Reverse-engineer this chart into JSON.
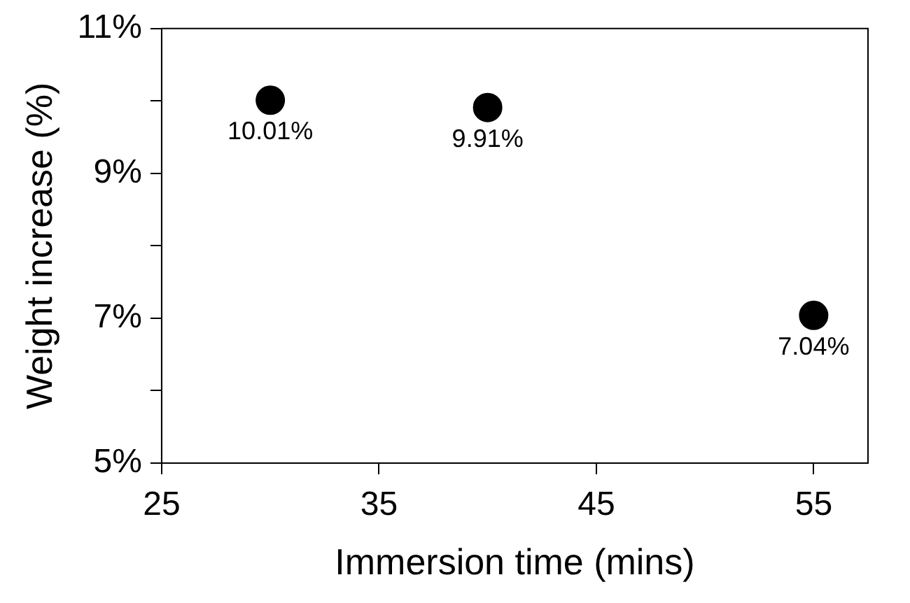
{
  "chart_data": {
    "type": "scatter",
    "xlabel": "Immersion time (mins)",
    "ylabel": "Weight increase (%)",
    "x": [
      30,
      40,
      55
    ],
    "values": [
      10.01,
      9.91,
      7.04
    ],
    "value_labels": [
      "10.01%",
      "9.91%",
      "7.04%"
    ],
    "color": "#000000",
    "marker": "circle",
    "xlim": [
      25,
      57.5
    ],
    "xticks": [
      25,
      35,
      45,
      55
    ],
    "ylim": [
      5,
      11
    ],
    "yticks": [
      {
        "value": 5,
        "label": "5%"
      },
      {
        "value": 6,
        "label": null
      },
      {
        "value": 7,
        "label": "7%"
      },
      {
        "value": 8,
        "label": null
      },
      {
        "value": 9,
        "label": "9%"
      },
      {
        "value": 10,
        "label": null
      },
      {
        "value": 11,
        "label": "11%"
      }
    ],
    "grid": false,
    "legend": false
  }
}
